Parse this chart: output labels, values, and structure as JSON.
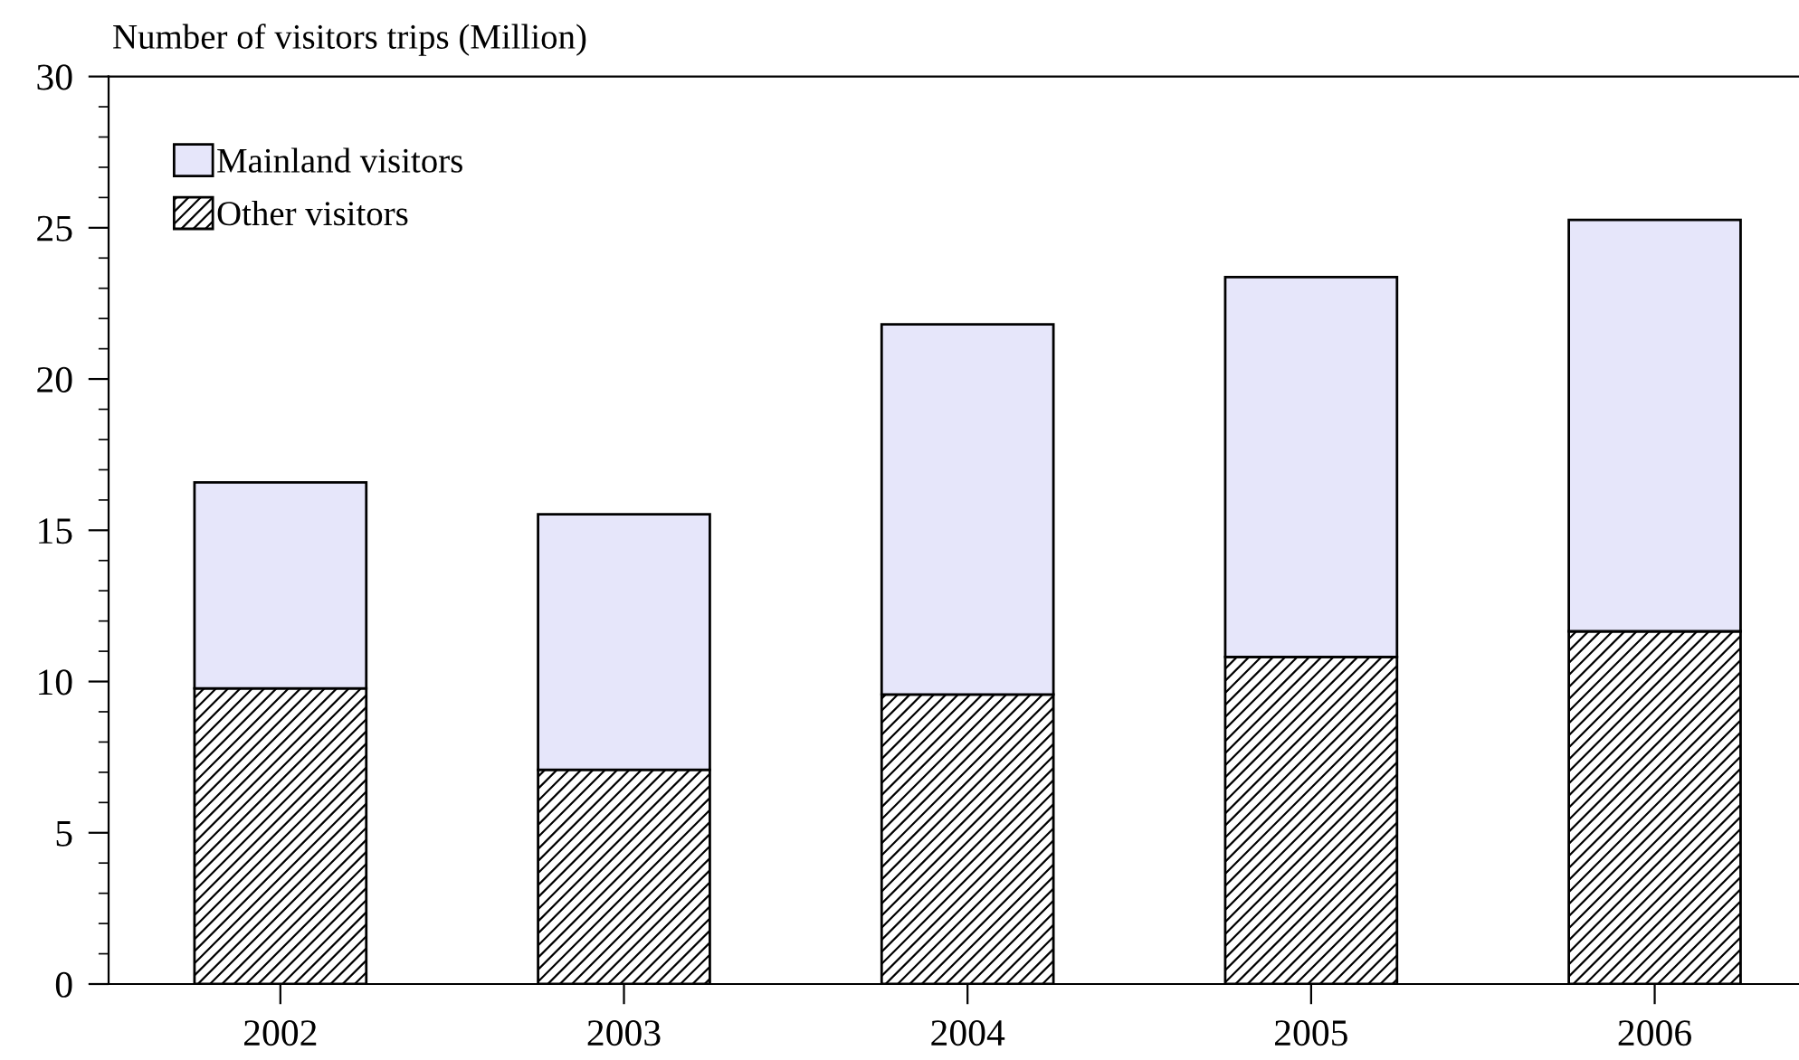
{
  "chart_data": {
    "type": "bar",
    "stacked": true,
    "ylabel": "Number of visitors trips (Million)",
    "categories": [
      "2002",
      "2003",
      "2004",
      "2005",
      "2006"
    ],
    "series": [
      {
        "name": "Other visitors",
        "color": "#000000",
        "values": [
          9.77,
          7.08,
          9.57,
          10.81,
          11.66
        ]
      },
      {
        "name": "Mainland visitors",
        "color": "#e6e6fa",
        "values": [
          6.81,
          8.45,
          12.24,
          12.56,
          13.6
        ]
      }
    ],
    "ylim": [
      0,
      30
    ],
    "yticks": [
      0,
      5,
      10,
      15,
      20,
      25,
      30
    ],
    "grid": false,
    "legend": "top left"
  }
}
